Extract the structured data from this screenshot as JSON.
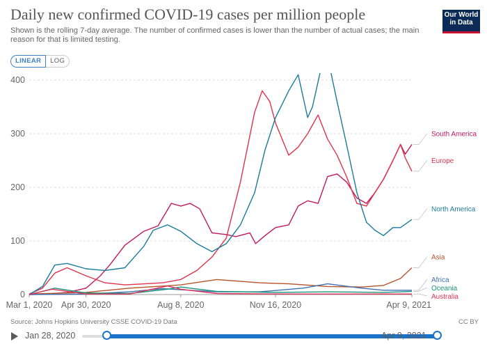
{
  "header": {
    "title": "Daily new confirmed COVID-19 cases per million people",
    "subtitle": "Shown is the rolling 7-day average. The number of confirmed cases is lower than the number of actual cases; the main reason for that is limited testing.",
    "logo_lines": [
      "Our World",
      "in Data"
    ]
  },
  "scale_toggle": {
    "linear_label": "LINEAR",
    "log_label": "LOG",
    "selected": "LINEAR"
  },
  "footer": {
    "source": "Source: Johns Hopkins University CSSE COVID-19 Data",
    "license": "CC BY"
  },
  "timeline": {
    "start_label": "Jan 28, 2020",
    "end_label": "Apr 9, 2021",
    "play_icon": "play-icon"
  },
  "chart_data": {
    "type": "line",
    "title": "Daily new confirmed COVID-19 cases per million people",
    "xlabel": "",
    "ylabel": "",
    "x_range": [
      "2020-03-01",
      "2021-04-09"
    ],
    "ylim": [
      0,
      400
    ],
    "y_ticks": [
      0,
      100,
      200,
      300,
      400
    ],
    "x_ticks": [
      "Mar 1, 2020",
      "Apr 30, 2020",
      "Aug 8, 2020",
      "Nov 16, 2020",
      "Apr 9, 2021"
    ],
    "x_tick_dates": [
      "2020-03-01",
      "2020-04-30",
      "2020-08-08",
      "2020-11-16",
      "2021-04-09"
    ],
    "grid": "horizontal dashed",
    "legend": "right, labels at line ends",
    "series": [
      {
        "name": "South America",
        "color": "#c2185b",
        "x": [
          "2020-03-01",
          "2020-03-20",
          "2020-04-10",
          "2020-04-30",
          "2020-05-15",
          "2020-05-25",
          "2020-06-10",
          "2020-06-30",
          "2020-07-15",
          "2020-07-29",
          "2020-08-08",
          "2020-08-18",
          "2020-08-28",
          "2020-09-10",
          "2020-09-25",
          "2020-10-05",
          "2020-10-20",
          "2020-10-26",
          "2020-11-05",
          "2020-11-16",
          "2020-11-30",
          "2020-12-10",
          "2020-12-20",
          "2020-12-31",
          "2021-01-10",
          "2021-01-20",
          "2021-01-30",
          "2021-02-10",
          "2021-02-20",
          "2021-03-01",
          "2021-03-10",
          "2021-03-20",
          "2021-03-28",
          "2021-04-02",
          "2021-04-09"
        ],
        "y": [
          0,
          1,
          4,
          12,
          35,
          55,
          92,
          118,
          128,
          170,
          165,
          170,
          160,
          115,
          112,
          108,
          115,
          95,
          110,
          125,
          130,
          165,
          175,
          170,
          220,
          225,
          210,
          180,
          170,
          190,
          215,
          250,
          280,
          262,
          280
        ]
      },
      {
        "name": "Europe",
        "color": "#e0324a",
        "x": [
          "2020-03-01",
          "2020-03-15",
          "2020-03-28",
          "2020-04-10",
          "2020-04-30",
          "2020-05-20",
          "2020-06-10",
          "2020-07-01",
          "2020-07-20",
          "2020-08-08",
          "2020-08-25",
          "2020-09-10",
          "2020-09-25",
          "2020-10-10",
          "2020-10-25",
          "2020-11-02",
          "2020-11-10",
          "2020-11-16",
          "2020-11-30",
          "2020-12-10",
          "2020-12-20",
          "2020-12-31",
          "2021-01-10",
          "2021-01-20",
          "2021-01-30",
          "2021-02-10",
          "2021-02-20",
          "2021-03-01",
          "2021-03-10",
          "2021-03-20",
          "2021-03-28",
          "2021-04-02",
          "2021-04-09"
        ],
        "y": [
          1,
          12,
          40,
          50,
          35,
          22,
          18,
          20,
          22,
          28,
          45,
          70,
          105,
          210,
          340,
          380,
          360,
          320,
          260,
          275,
          300,
          335,
          290,
          260,
          220,
          170,
          165,
          190,
          215,
          250,
          280,
          255,
          230
        ]
      },
      {
        "name": "North America",
        "color": "#1a7a9c",
        "x": [
          "2020-03-01",
          "2020-03-15",
          "2020-03-28",
          "2020-04-10",
          "2020-04-30",
          "2020-05-20",
          "2020-06-10",
          "2020-06-30",
          "2020-07-10",
          "2020-07-25",
          "2020-08-08",
          "2020-08-25",
          "2020-09-10",
          "2020-09-25",
          "2020-10-10",
          "2020-10-25",
          "2020-11-05",
          "2020-11-16",
          "2020-11-30",
          "2020-12-10",
          "2020-12-20",
          "2020-12-25",
          "2021-01-08",
          "2021-01-20",
          "2021-01-30",
          "2021-02-10",
          "2021-02-20",
          "2021-03-01",
          "2021-03-10",
          "2021-03-20",
          "2021-03-28",
          "2021-04-09"
        ],
        "y": [
          0,
          15,
          55,
          58,
          48,
          45,
          50,
          90,
          120,
          130,
          118,
          95,
          80,
          95,
          130,
          190,
          270,
          330,
          380,
          410,
          330,
          350,
          460,
          360,
          280,
          190,
          135,
          120,
          110,
          125,
          125,
          140
        ]
      },
      {
        "name": "Asia",
        "color": "#b5532a",
        "x": [
          "2020-03-01",
          "2020-04-30",
          "2020-06-15",
          "2020-08-08",
          "2020-09-15",
          "2020-10-30",
          "2020-11-30",
          "2021-01-10",
          "2021-02-15",
          "2021-03-10",
          "2021-03-28",
          "2021-04-09"
        ],
        "y": [
          1,
          4,
          12,
          18,
          28,
          22,
          20,
          15,
          14,
          17,
          30,
          50
        ]
      },
      {
        "name": "Africa",
        "color": "#3f6fb0",
        "x": [
          "2020-03-01",
          "2020-04-30",
          "2020-06-15",
          "2020-07-20",
          "2020-08-08",
          "2020-09-15",
          "2020-10-30",
          "2020-12-15",
          "2021-01-10",
          "2021-02-15",
          "2021-03-10",
          "2021-04-09"
        ],
        "y": [
          0,
          1,
          5,
          11,
          9,
          5,
          5,
          12,
          20,
          12,
          8,
          8
        ]
      },
      {
        "name": "Oceania",
        "color": "#18957b",
        "x": [
          "2020-03-01",
          "2020-03-28",
          "2020-04-30",
          "2020-06-15",
          "2020-07-25",
          "2020-08-08",
          "2020-09-15",
          "2020-11-16",
          "2021-01-10",
          "2021-03-10",
          "2021-04-09"
        ],
        "y": [
          0,
          12,
          3,
          2,
          10,
          14,
          6,
          4,
          5,
          4,
          6
        ]
      },
      {
        "name": "Australia",
        "color": "#e0325a",
        "x": [
          "2020-03-01",
          "2020-03-25",
          "2020-04-30",
          "2020-06-15",
          "2020-07-25",
          "2020-08-08",
          "2020-09-15",
          "2020-11-16",
          "2021-01-10",
          "2021-04-09"
        ],
        "y": [
          0,
          10,
          1,
          1,
          16,
          10,
          2,
          1,
          1,
          1
        ]
      }
    ]
  }
}
